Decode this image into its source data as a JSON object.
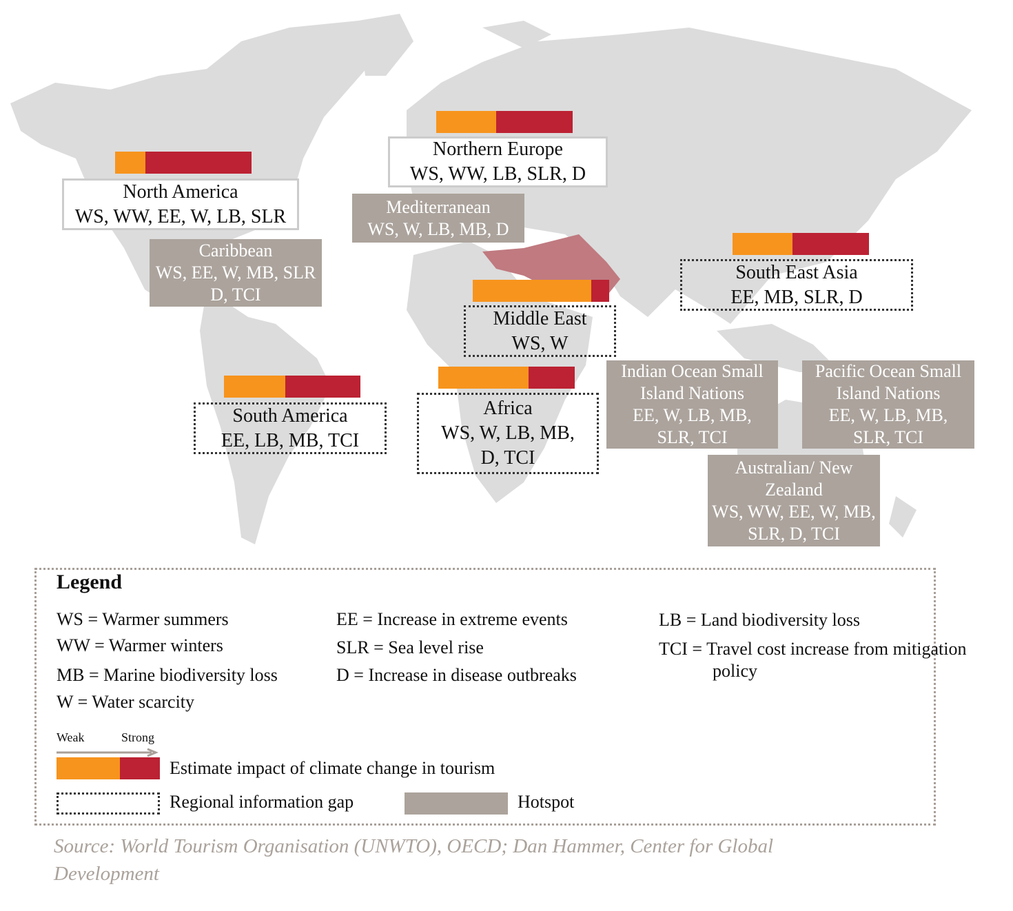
{
  "regions": [
    {
      "name": "North America",
      "lines": [
        "North America",
        "WS, WW, EE, W, LB, SLR"
      ],
      "style": "outline",
      "weak_share": 0.22
    },
    {
      "name": "Northern Europe",
      "lines": [
        "Northern Europe",
        "WS, WW, LB, SLR, D"
      ],
      "style": "outline",
      "weak_share": 0.44
    },
    {
      "name": "Mediterranean",
      "lines": [
        "Mediterranean",
        "WS, W, LB, MB, D"
      ],
      "style": "hotspot"
    },
    {
      "name": "Caribbean",
      "lines": [
        "Caribbean",
        "WS, EE, W, MB, SLR",
        "D, TCI"
      ],
      "style": "hotspot"
    },
    {
      "name": "South East Asia",
      "lines": [
        "South East Asia",
        "EE, MB, SLR, D"
      ],
      "style": "gap",
      "weak_share": 0.44
    },
    {
      "name": "Middle East",
      "lines": [
        "Middle East",
        "WS, W"
      ],
      "style": "gap",
      "weak_share": 0.87
    },
    {
      "name": "South America",
      "lines": [
        "South America",
        "EE, LB, MB, TCI"
      ],
      "style": "gap",
      "weak_share": 0.45
    },
    {
      "name": "Africa",
      "lines": [
        "Africa",
        "WS, W, LB, MB,",
        "D, TCI"
      ],
      "style": "gap",
      "weak_share": 0.66
    },
    {
      "name": "Indian Ocean Small Island Nations",
      "lines": [
        "Indian Ocean Small",
        "Island Nations",
        "EE, W, LB, MB,",
        "SLR, TCI"
      ],
      "style": "hotspot"
    },
    {
      "name": "Pacific Ocean Small Island Nations",
      "lines": [
        "Pacific Ocean Small",
        "Island Nations",
        "EE, W, LB, MB,",
        "SLR, TCI"
      ],
      "style": "hotspot"
    },
    {
      "name": "Australian/ New Zealand",
      "lines": [
        "Australian/ New",
        "Zealand",
        "WS, WW, EE, W, MB,",
        "SLR, D, TCI"
      ],
      "style": "hotspot"
    }
  ],
  "legend": {
    "title": "Legend",
    "items": [
      "WS = Warmer summers",
      "WW = Warmer winters",
      "MB = Marine biodiversity loss",
      "W = Water scarcity",
      "EE = Increase in extreme events",
      "SLR = Sea level rise",
      "D = Increase in disease outbreaks",
      "LB = Land biodiversity loss",
      "TCI = Travel cost increase from mitigation policy"
    ],
    "scale": {
      "weak": "Weak",
      "strong": "Strong",
      "label": "Estimate impact of climate change in tourism",
      "weak_share": 0.61
    },
    "gap_label": "Regional information gap",
    "hotspot_label": "Hotspot"
  },
  "source": "Source: World Tourism Organisation (UNWTO), OECD; Dan Hammer, Center for Global Development"
}
